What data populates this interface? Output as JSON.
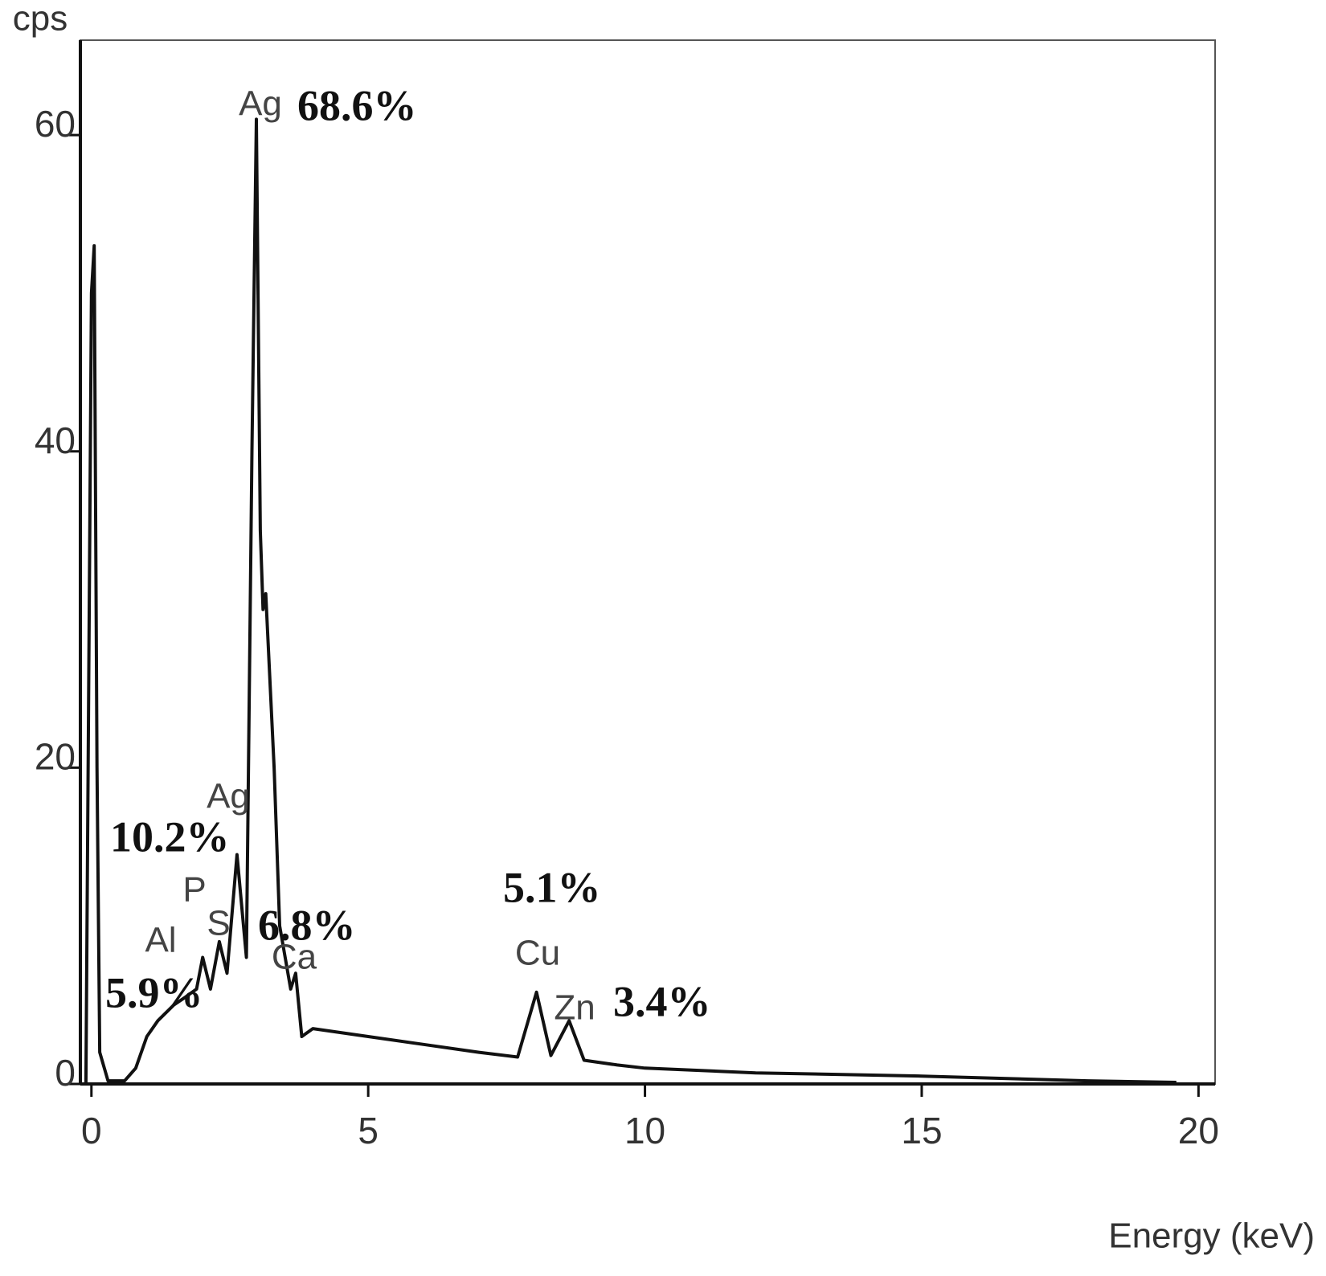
{
  "chart_data": {
    "type": "line",
    "y_label": "cps",
    "x_label": "Energy (keV)",
    "xlim": [
      -0.2,
      20.3
    ],
    "ylim": [
      0,
      66
    ],
    "xticks": [
      0,
      5,
      10,
      15,
      20
    ],
    "yticks": [
      0,
      20,
      40,
      60
    ],
    "color": "#111111",
    "x": [
      -0.1,
      0.0,
      0.05,
      0.1,
      0.15,
      0.3,
      0.6,
      0.8,
      1.0,
      1.2,
      1.49,
      1.7,
      1.9,
      2.01,
      2.15,
      2.31,
      2.45,
      2.63,
      2.8,
      2.9,
      2.98,
      3.05,
      3.1,
      3.15,
      3.3,
      3.4,
      3.6,
      3.69,
      3.8,
      4.0,
      5.0,
      6.0,
      7.0,
      7.7,
      8.04,
      8.3,
      8.63,
      8.9,
      9.5,
      10.0,
      12.0,
      15.0,
      18.0,
      19.6
    ],
    "values": [
      0,
      50,
      53,
      20,
      2,
      0.2,
      0.2,
      1,
      3,
      4,
      5,
      5.5,
      6,
      8,
      6,
      9,
      7,
      14.5,
      8,
      40,
      61,
      35,
      30,
      31,
      20,
      10,
      6,
      7,
      3,
      3.5,
      3,
      2.5,
      2,
      1.7,
      5.8,
      1.8,
      4,
      1.5,
      1.2,
      1,
      0.7,
      0.5,
      0.2,
      0.1
    ],
    "annotations": [
      "Ag",
      "68.6%",
      "Ag",
      "10.2%",
      "P",
      "S",
      "Al",
      "5.9%",
      "6.8%",
      "Ca",
      "5.1%",
      "Cu",
      "Zn",
      "3.4%"
    ]
  }
}
